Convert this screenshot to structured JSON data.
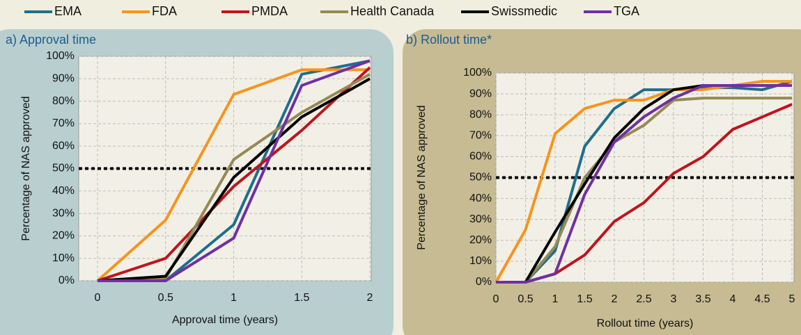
{
  "chart_data": [
    {
      "type": "line",
      "title": "a) Approval time",
      "xlabel": "Approval time (years)",
      "ylabel": "Percentage of NAS approved",
      "x": [
        0,
        0.5,
        1,
        1.5,
        2
      ],
      "xlim": [
        0,
        2
      ],
      "xticks": [
        0,
        0.5,
        1,
        1.5,
        2
      ],
      "ylim": [
        0,
        100
      ],
      "yticks": [
        {
          "value": 0,
          "label": "0%"
        },
        {
          "value": 10,
          "label": "10%"
        },
        {
          "value": 20,
          "label": "20%"
        },
        {
          "value": 30,
          "label": "30%"
        },
        {
          "value": 40,
          "label": "40%"
        },
        {
          "value": 50,
          "label": "50%"
        },
        {
          "value": 60,
          "label": "60%"
        },
        {
          "value": 70,
          "label": "70%"
        },
        {
          "value": 80,
          "label": "80%"
        },
        {
          "value": 90,
          "label": "90%"
        },
        {
          "value": 100,
          "label": "100%"
        }
      ],
      "grid": true,
      "reference_line": 50,
      "series": [
        {
          "name": "EMA",
          "color": "#1f6e8c",
          "values": [
            0,
            0,
            25,
            92,
            98
          ]
        },
        {
          "name": "FDA",
          "color": "#f7941d",
          "values": [
            0,
            27,
            83,
            94,
            94
          ]
        },
        {
          "name": "PMDA",
          "color": "#c0141c",
          "values": [
            0,
            10,
            42,
            67,
            95
          ]
        },
        {
          "name": "Health Canada",
          "color": "#948a54",
          "values": [
            0,
            1,
            54,
            75,
            92
          ]
        },
        {
          "name": "Swissmedic",
          "color": "#000000",
          "values": [
            0,
            2,
            46,
            73,
            90
          ]
        },
        {
          "name": "TGA",
          "color": "#7030a0",
          "values": [
            0,
            0,
            19,
            87,
            98
          ]
        }
      ]
    },
    {
      "type": "line",
      "title": "b) Rollout time*",
      "xlabel": "Rollout time (years)",
      "ylabel": "Percentage of NAS approved",
      "x": [
        0,
        0.5,
        1,
        1.5,
        2,
        2.5,
        3,
        3.5,
        4,
        4.5,
        5
      ],
      "xlim": [
        0,
        5
      ],
      "xticks": [
        0,
        0.5,
        1,
        1.5,
        2,
        2.5,
        3,
        3.5,
        4,
        4.5,
        5
      ],
      "ylim": [
        0,
        100
      ],
      "yticks": [
        {
          "value": 0,
          "label": "0%"
        },
        {
          "value": 10,
          "label": "10%"
        },
        {
          "value": 20,
          "label": "20%"
        },
        {
          "value": 30,
          "label": "30%"
        },
        {
          "value": 40,
          "label": "40%"
        },
        {
          "value": 50,
          "label": "50%"
        },
        {
          "value": 60,
          "label": "60%"
        },
        {
          "value": 70,
          "label": "70%"
        },
        {
          "value": 80,
          "label": "80%"
        },
        {
          "value": 90,
          "label": "90%"
        },
        {
          "value": 100,
          "label": "100%"
        }
      ],
      "grid": true,
      "reference_line": 50,
      "series": [
        {
          "color": "#1f6e8c",
          "values": [
            0,
            0,
            15,
            65,
            83,
            92,
            92,
            93,
            93,
            92,
            96
          ]
        },
        {
          "color": "#f7941d",
          "values": [
            0,
            25,
            71,
            83,
            87,
            87,
            92,
            92,
            94,
            96,
            96
          ]
        },
        {
          "color": "#c0141c",
          "values": [
            0,
            0,
            4,
            13,
            29,
            38,
            52,
            60,
            73,
            79,
            85
          ]
        },
        {
          "color": "#948a54",
          "values": [
            0,
            0,
            17,
            50,
            67,
            75,
            87,
            88,
            88,
            88,
            88
          ]
        },
        {
          "color": "#000000",
          "values": [
            0,
            0,
            24,
            47,
            69,
            83,
            92,
            94,
            94,
            94,
            94
          ]
        },
        {
          "color": "#7030a0",
          "values": [
            0,
            0,
            4,
            42,
            67,
            79,
            88,
            94,
            94,
            94,
            94
          ]
        }
      ]
    }
  ]
}
